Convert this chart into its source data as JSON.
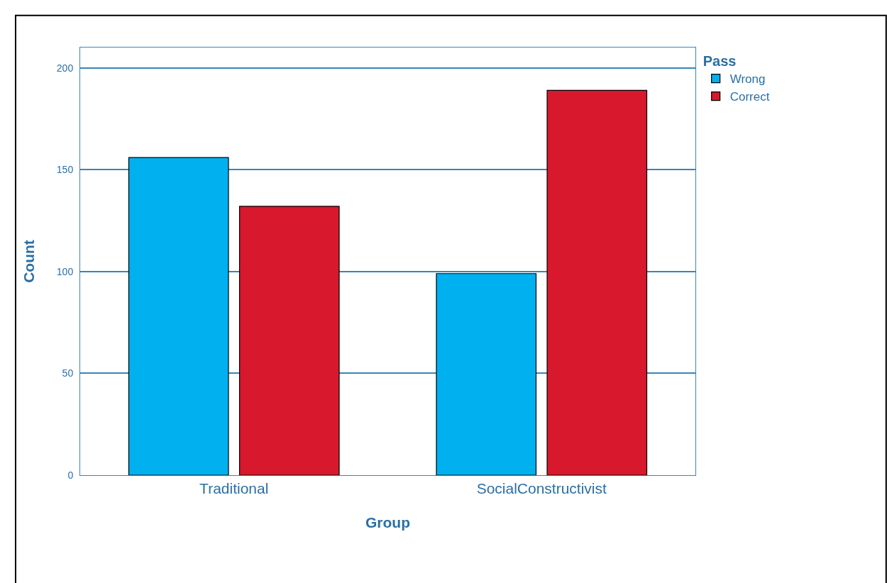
{
  "chart_data": {
    "type": "bar",
    "xlabel": "Group",
    "ylabel": "Count",
    "legend_title": "Pass",
    "categories": [
      "Traditional",
      "SocialConstructivist"
    ],
    "series": [
      {
        "name": "Wrong",
        "color": "#00b0ef",
        "values": [
          156,
          99
        ]
      },
      {
        "name": "Correct",
        "color": "#d7182d",
        "values": [
          132,
          189
        ]
      }
    ],
    "ylim": [
      0,
      210
    ],
    "yticks": [
      0,
      50,
      100,
      150,
      200
    ],
    "grid": "y",
    "legend": "top right"
  }
}
